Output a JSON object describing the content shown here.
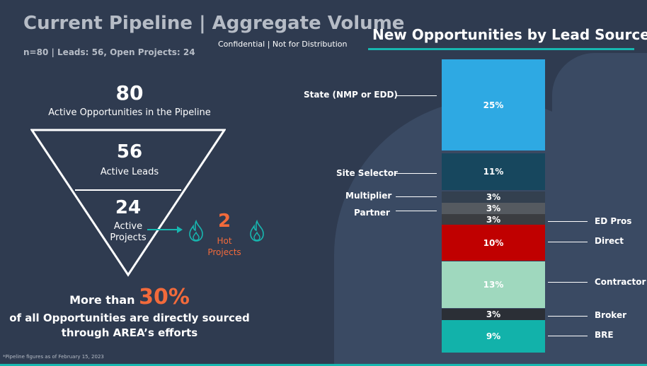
{
  "header": {
    "title": "Current Pipeline | Aggregate Volume",
    "subtitle": "n=80 | Leads: 56, Open Projects: 24",
    "confidential": "Confidential | Not for Distribution"
  },
  "left": {
    "total": {
      "number": "80",
      "label": "Active Opportunities in the Pipeline"
    },
    "leads": {
      "number": "56",
      "label": "Active Leads"
    },
    "projects": {
      "number": "24",
      "label_line1": "Active",
      "label_line2": "Projects"
    },
    "hot": {
      "number": "2",
      "label_line1": "Hot",
      "label_line2": "Projects"
    },
    "more_prefix": "More than",
    "more_pct": "30%",
    "sourced_line1": "of all Opportunities are directly sourced",
    "sourced_line2": "through AREA’s efforts",
    "footnote": "*Pipeline figures as of February 15, 2023"
  },
  "right": {
    "title": "New Opportunities by Lead Source",
    "segments": [
      {
        "name": "State (NMP or EDD)",
        "value": "25%",
        "color": "#2ea9e3"
      },
      {
        "name": "Site Selector",
        "value": "11%",
        "color": "#17475e"
      },
      {
        "name": "Multiplier",
        "value": "3%",
        "color": "#33404f"
      },
      {
        "name": "Partner",
        "value": "3%",
        "color": "#555a60"
      },
      {
        "name": "ED Pros",
        "value": "3%",
        "color": "#3b3d41"
      },
      {
        "name": "Direct",
        "value": "10%",
        "color": "#c00000"
      },
      {
        "name": "Contractor",
        "value": "13%",
        "color": "#9fd8be"
      },
      {
        "name": "Broker",
        "value": "3%",
        "color": "#2b2f36"
      },
      {
        "name": "BRE",
        "value": "9%",
        "color": "#12b2aa"
      }
    ]
  },
  "colors": {
    "accent_teal": "#17b7b0",
    "accent_orange": "#f26a3b",
    "background": "#2f3b50"
  },
  "icons": {
    "flame_left": "flame-icon",
    "flame_right": "flame-icon",
    "arrow": "arrow-right-icon"
  }
}
